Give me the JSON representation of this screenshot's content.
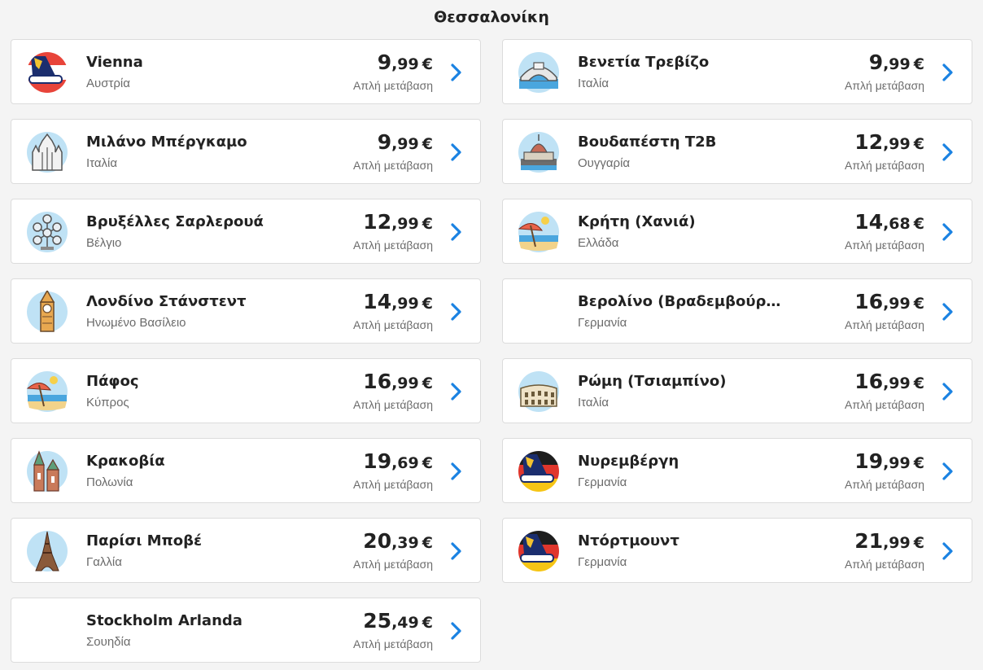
{
  "header": {
    "title": "Θεσσαλονίκη"
  },
  "fare_label": "Απλή μετάβαση",
  "currency": "€",
  "colors": {
    "chevron": "#1a82e2",
    "card_border": "#dcdcdc",
    "background": "#f4f4f4"
  },
  "destinations": [
    {
      "city": "Vienna",
      "country": "Αυστρία",
      "price_int": "9",
      "price_dec": ",99",
      "icon": "ryanair-plane-tail-icon"
    },
    {
      "city": "Βενετία Τρεβίζο",
      "country": "Ιταλία",
      "price_int": "9",
      "price_dec": ",99",
      "icon": "venice-bridge-icon"
    },
    {
      "city": "Μιλάνο Μπέργκαμο",
      "country": "Ιταλία",
      "price_int": "9",
      "price_dec": ",99",
      "icon": "milan-cathedral-icon"
    },
    {
      "city": "Βουδαπέστη T2B",
      "country": "Ουγγαρία",
      "price_int": "12",
      "price_dec": ",99",
      "icon": "budapest-parliament-icon"
    },
    {
      "city": "Βρυξέλλες Σαρλερουά",
      "country": "Βέλγιο",
      "price_int": "12",
      "price_dec": ",99",
      "icon": "atomium-icon"
    },
    {
      "city": "Κρήτη (Χανιά)",
      "country": "Ελλάδα",
      "price_int": "14",
      "price_dec": ",68",
      "icon": "beach-umbrella-icon"
    },
    {
      "city": "Λονδίνο Στάνστεντ",
      "country": "Ηνωμένο Βασίλειο",
      "price_int": "14",
      "price_dec": ",99",
      "icon": "big-ben-icon"
    },
    {
      "city": "Βερολίνο (Βραδεμβούργο)",
      "country": "Γερμανία",
      "price_int": "16",
      "price_dec": ",99",
      "icon": ""
    },
    {
      "city": "Πάφος",
      "country": "Κύπρος",
      "price_int": "16",
      "price_dec": ",99",
      "icon": "beach-umbrella-icon"
    },
    {
      "city": "Ρώμη (Τσιαμπίνο)",
      "country": "Ιταλία",
      "price_int": "16",
      "price_dec": ",99",
      "icon": "colosseum-icon"
    },
    {
      "city": "Κρακοβία",
      "country": "Πολωνία",
      "price_int": "19",
      "price_dec": ",69",
      "icon": "krakow-church-icon"
    },
    {
      "city": "Νυρεμβέργη",
      "country": "Γερμανία",
      "price_int": "19",
      "price_dec": ",99",
      "icon": "ryanair-plane-tail-germany-icon"
    },
    {
      "city": "Παρίσι Μποβέ",
      "country": "Γαλλία",
      "price_int": "20",
      "price_dec": ",39",
      "icon": "eiffel-tower-icon"
    },
    {
      "city": "Ντόρτμουντ",
      "country": "Γερμανία",
      "price_int": "21",
      "price_dec": ",99",
      "icon": "ryanair-plane-tail-germany-icon"
    },
    {
      "city": "Stockholm Arlanda",
      "country": "Σουηδία",
      "price_int": "25",
      "price_dec": ",49",
      "icon": ""
    }
  ]
}
